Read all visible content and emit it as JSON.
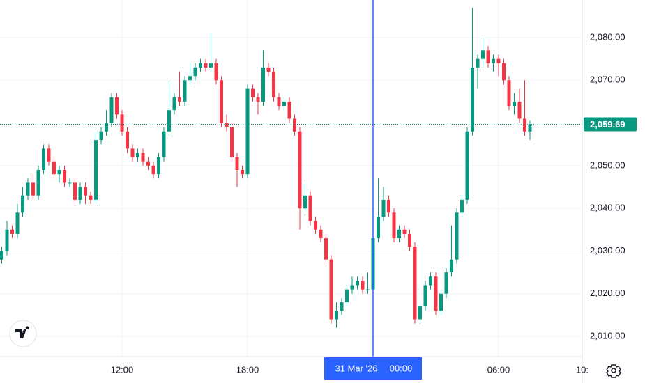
{
  "chart_data": {
    "type": "candlestick",
    "up_color": "#089981",
    "down_color": "#f23645",
    "grid": true,
    "ylim": [
      2005.27,
      2088.81
    ],
    "yticks": [
      {
        "value": 2010,
        "label": "2,010.00"
      },
      {
        "value": 2020,
        "label": "2,020.00"
      },
      {
        "value": 2030,
        "label": "2,030.00"
      },
      {
        "value": 2040,
        "label": "2,040.00"
      },
      {
        "value": 2050,
        "label": "2,050.00"
      },
      {
        "value": 2060,
        "label": "2,060.00"
      },
      {
        "value": 2070,
        "label": "2,070.00"
      },
      {
        "value": 2080,
        "label": "2,080.00"
      }
    ],
    "last_price": 2059.69,
    "last_price_label": "2,059.69",
    "crosshair_index": 71,
    "crosshair_date": "31 Mar '26",
    "categories": [
      null,
      null,
      null,
      null,
      null,
      null,
      null,
      null,
      null,
      null,
      null,
      null,
      null,
      null,
      null,
      null,
      null,
      null,
      null,
      null,
      null,
      null,
      null,
      "12:00",
      null,
      null,
      null,
      null,
      null,
      null,
      null,
      null,
      null,
      null,
      null,
      null,
      null,
      null,
      null,
      null,
      null,
      null,
      null,
      null,
      null,
      null,
      null,
      "18:00",
      null,
      null,
      null,
      null,
      null,
      null,
      null,
      null,
      null,
      null,
      null,
      null,
      null,
      null,
      null,
      null,
      null,
      null,
      null,
      null,
      null,
      null,
      null,
      "00:00",
      null,
      null,
      null,
      null,
      null,
      null,
      null,
      null,
      null,
      null,
      null,
      null,
      null,
      null,
      null,
      null,
      null,
      null,
      null,
      null,
      null,
      null,
      null,
      "06:00",
      null,
      null,
      null,
      null,
      null,
      null,
      null,
      null,
      null,
      null,
      null,
      null,
      null,
      null,
      null,
      "10:"
    ],
    "open": [
      2028,
      2030,
      2035,
      2034,
      2039,
      2043,
      2046,
      2043,
      2049,
      2054,
      2051,
      2048,
      2049,
      2046,
      2046,
      2042,
      2045,
      2043,
      2042,
      2056,
      2058,
      2060,
      2066,
      2062,
      2058,
      2054,
      2052,
      2053,
      2051,
      2050,
      2048,
      2052,
      2058,
      2063,
      2066,
      2065,
      2070,
      2071,
      2073,
      2074,
      2073,
      2074,
      2070,
      2060,
      2059,
      2052,
      2049,
      2048,
      2068,
      2066,
      2065,
      2073,
      2072,
      2066,
      2064,
      2065,
      2061,
      2058,
      2040,
      2043,
      2037,
      2035,
      2033,
      2028,
      2014,
      2016,
      2018,
      2021,
      2022,
      2023,
      2021,
      2021,
      2033,
      2038,
      2042,
      2039,
      2033,
      2035,
      2034,
      2031,
      2014,
      2017,
      2022,
      2024,
      2016,
      2020,
      2025,
      2028,
      2039,
      2042,
      2058,
      2073,
      2075,
      2077,
      2074,
      2075,
      2074,
      2070,
      2064,
      2065,
      2061,
      2058,
      null,
      null,
      null,
      null,
      null,
      null,
      null,
      null,
      null,
      null
    ],
    "high": [
      2031,
      2037,
      2036,
      2041,
      2045,
      2047,
      2048,
      2050,
      2055,
      2055,
      2052,
      2050,
      2050,
      2047,
      2047,
      2046,
      2046,
      2044,
      2058,
      2059,
      2063,
      2067,
      2067,
      2063,
      2059,
      2055,
      2054,
      2054,
      2052,
      2051,
      2053,
      2059,
      2070,
      2067,
      2072,
      2071,
      2074,
      2074,
      2075,
      2075,
      2081,
      2075,
      2071,
      2062,
      2060,
      2053,
      2050,
      2069,
      2069,
      2067,
      2077,
      2074,
      2073,
      2067,
      2066,
      2066,
      2062,
      2059,
      2046,
      2044,
      2038,
      2036,
      2034,
      2029,
      2018,
      2019,
      2022,
      2024,
      2024,
      2024,
      2025,
      2034,
      2047,
      2045,
      2043,
      2040,
      2036,
      2036,
      2035,
      2032,
      2018,
      2023,
      2025,
      2025,
      2021,
      2026,
      2036,
      2040,
      2043,
      2059,
      2087,
      2076,
      2080,
      2078,
      2076,
      2076,
      2075,
      2071,
      2067,
      2068,
      2070,
      2060.5,
      null,
      null,
      null,
      null,
      null,
      null,
      null,
      null,
      null,
      null
    ],
    "low": [
      2027,
      2029,
      2033,
      2033,
      2038,
      2042,
      2042,
      2042,
      2048,
      2050,
      2047,
      2046,
      2045,
      2045,
      2041,
      2041,
      2041,
      2041,
      2041,
      2055,
      2057,
      2059,
      2061,
      2057,
      2053,
      2051,
      2051,
      2050,
      2049,
      2047,
      2047,
      2051,
      2057,
      2062,
      2064,
      2064,
      2069,
      2070,
      2072,
      2072,
      2072,
      2069,
      2059,
      2058,
      2051,
      2045,
      2047,
      2047,
      2065,
      2062,
      2064,
      2071,
      2065,
      2063,
      2063,
      2060,
      2057,
      2035,
      2039,
      2036,
      2034,
      2032,
      2027,
      2013,
      2012,
      2015,
      2017,
      2020,
      2021,
      2020,
      2020,
      2020,
      2032,
      2037,
      2038,
      2032,
      2032,
      2033,
      2030,
      2013,
      2013,
      2016,
      2021,
      2015,
      2015,
      2019,
      2024,
      2027,
      2038,
      2041,
      2057,
      2068,
      2073,
      2073,
      2072,
      2071,
      2069,
      2063,
      2062,
      2060,
      2057,
      2056,
      null,
      null,
      null,
      null,
      null,
      null,
      null,
      null,
      null,
      null
    ],
    "close": [
      2030,
      2035,
      2034,
      2039,
      2043,
      2046,
      2043,
      2049,
      2054,
      2051,
      2048,
      2049,
      2046,
      2046,
      2042,
      2045,
      2043,
      2042,
      2056,
      2058,
      2060,
      2066,
      2062,
      2058,
      2054,
      2052,
      2053,
      2051,
      2050,
      2048,
      2052,
      2058,
      2063,
      2066,
      2065,
      2070,
      2071,
      2073,
      2074,
      2073,
      2074,
      2070,
      2060,
      2059,
      2052,
      2049,
      2048,
      2068,
      2066,
      2065,
      2073,
      2072,
      2066,
      2064,
      2065,
      2061,
      2058,
      2040,
      2043,
      2037,
      2035,
      2033,
      2028,
      2014,
      2016,
      2018,
      2021,
      2022,
      2023,
      2021,
      2021,
      2033,
      2038,
      2042,
      2039,
      2033,
      2035,
      2034,
      2031,
      2014,
      2017,
      2022,
      2024,
      2016,
      2020,
      2025,
      2028,
      2039,
      2042,
      2058,
      2073,
      2075,
      2077,
      2074,
      2075,
      2074,
      2070,
      2064,
      2065,
      2061,
      2058,
      2059.69,
      null,
      null,
      null,
      null,
      null,
      null,
      null,
      null,
      null,
      null
    ]
  }
}
